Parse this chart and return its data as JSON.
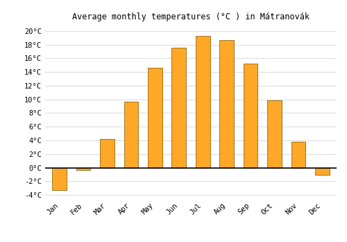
{
  "title": "Average monthly temperatures (°C ) in Mátranovák",
  "months": [
    "Jan",
    "Feb",
    "Mar",
    "Apr",
    "May",
    "Jun",
    "Jul",
    "Aug",
    "Sep",
    "Oct",
    "Nov",
    "Dec"
  ],
  "values": [
    -3.3,
    -0.4,
    4.2,
    9.7,
    14.6,
    17.6,
    19.3,
    18.7,
    15.2,
    9.9,
    3.8,
    -1.1
  ],
  "bar_color": "#FFA726",
  "bar_edge_color": "#8B6914",
  "ylim": [
    -4.5,
    21
  ],
  "yticks": [
    -4,
    -2,
    0,
    2,
    4,
    6,
    8,
    10,
    12,
    14,
    16,
    18,
    20
  ],
  "ytick_labels": [
    "-4°C",
    "-2°C",
    "0°C",
    "2°C",
    "4°C",
    "6°C",
    "8°C",
    "10°C",
    "12°C",
    "14°C",
    "16°C",
    "18°C",
    "20°C"
  ],
  "background_color": "#ffffff",
  "plot_bg_color": "#ffffff",
  "grid_color": "#dddddd",
  "bar_width": 0.6,
  "title_fontsize": 8.5,
  "tick_fontsize": 7.5
}
